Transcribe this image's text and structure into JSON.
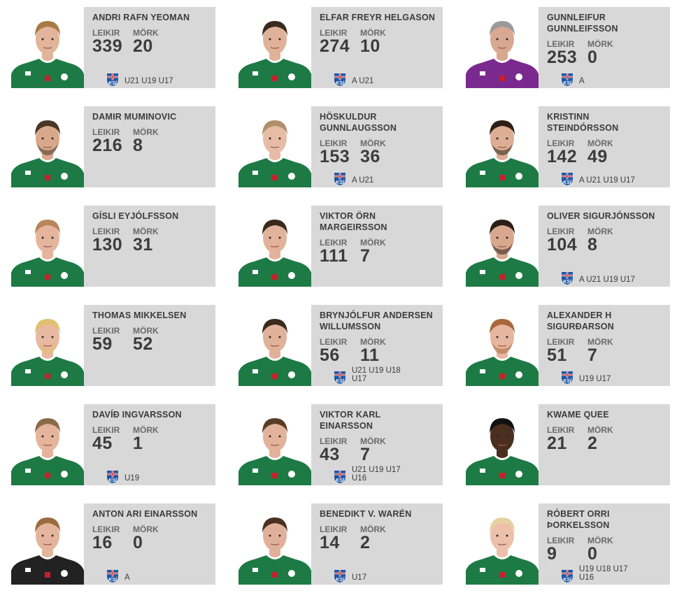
{
  "stat_labels": {
    "games": "LEIKIR",
    "goals": "MÖRK"
  },
  "colors": {
    "card_bg": "#d8d8d8",
    "jersey_green": "#1e7a45",
    "gk_purple": "#7a2a8e",
    "gk_black": "#222222",
    "ksi_blue": "#1b56a6",
    "ksi_red": "#d42b2b"
  },
  "players": [
    {
      "name": "ANDRI RAFN YEOMAN",
      "games": "339",
      "goals": "20",
      "teams": "U21 U19 U17",
      "ksi_logo": true,
      "kit": "green",
      "hair": "#a87a44",
      "skin": "#e2b49a",
      "beard": false
    },
    {
      "name": "ELFAR FREYR HELGASON",
      "games": "274",
      "goals": "10",
      "teams": "A U21",
      "ksi_logo": true,
      "kit": "green",
      "hair": "#3a2a1e",
      "skin": "#e0b29a",
      "beard": false
    },
    {
      "name": "GUNNLEIFUR GUNNLEIFSSON",
      "games": "253",
      "goals": "0",
      "teams": "A",
      "ksi_logo": true,
      "kit": "purple",
      "hair": "#9a9a9a",
      "skin": "#d9a890",
      "beard": false
    },
    {
      "name": "DAMIR MUMINOVIC",
      "games": "216",
      "goals": "8",
      "teams": "",
      "ksi_logo": false,
      "kit": "green",
      "hair": "#4a3626",
      "skin": "#d9a88c",
      "beard": true
    },
    {
      "name": "HÖSKULDUR GUNNLAUGSSON",
      "games": "153",
      "goals": "36",
      "teams": "A U21",
      "ksi_logo": true,
      "kit": "green",
      "hair": "#b08f6a",
      "skin": "#e6bca6",
      "beard": false
    },
    {
      "name": "KRISTINN STEINDÓRSSON",
      "games": "142",
      "goals": "49",
      "teams": "A U21 U19 U17",
      "ksi_logo": true,
      "kit": "green",
      "hair": "#2e2018",
      "skin": "#ddae94",
      "beard": true
    },
    {
      "name": "GÍSLI EYJÓLFSSON",
      "games": "130",
      "goals": "31",
      "teams": "",
      "ksi_logo": false,
      "kit": "green",
      "hair": "#b8865a",
      "skin": "#e4b49c",
      "beard": false
    },
    {
      "name": "VIKTOR ÖRN MARGEIRSSON",
      "games": "111",
      "goals": "7",
      "teams": "",
      "ksi_logo": false,
      "kit": "green",
      "hair": "#3a2a1c",
      "skin": "#e2b29a",
      "beard": false
    },
    {
      "name": "OLIVER SIGURJÓNSSON",
      "games": "104",
      "goals": "8",
      "teams": "A U21 U19 U17",
      "ksi_logo": true,
      "kit": "green",
      "hair": "#2a1e16",
      "skin": "#d8a88e",
      "beard": true
    },
    {
      "name": "THOMAS MIKKELSEN",
      "games": "59",
      "goals": "52",
      "teams": "",
      "ksi_logo": false,
      "kit": "green",
      "hair": "#e0c070",
      "skin": "#e8b8a0",
      "beard": true
    },
    {
      "name": "BRYNJÓLFUR ANDERSEN WILLUMSSON",
      "games": "56",
      "goals": "11",
      "teams": "U21 U19 U18 U17",
      "ksi_logo": true,
      "kit": "green",
      "hair": "#3a2a1e",
      "skin": "#e0b29a",
      "beard": false
    },
    {
      "name": "ALEXANDER H SIGURÐARSON",
      "games": "51",
      "goals": "7",
      "teams": "U19 U17",
      "ksi_logo": true,
      "kit": "green",
      "hair": "#a8683a",
      "skin": "#e6b6a0",
      "beard": true
    },
    {
      "name": "DAVÍÐ INGVARSSON",
      "games": "45",
      "goals": "1",
      "teams": "U19",
      "ksi_logo": true,
      "kit": "green",
      "hair": "#8a6a4a",
      "skin": "#e4b49c",
      "beard": false
    },
    {
      "name": "VIKTOR KARL EINARSSON",
      "games": "43",
      "goals": "7",
      "teams": "U21 U19 U17 U16",
      "ksi_logo": true,
      "kit": "green",
      "hair": "#5a3c26",
      "skin": "#e2b29a",
      "beard": false
    },
    {
      "name": "KWAME QUEE",
      "games": "21",
      "goals": "2",
      "teams": "",
      "ksi_logo": false,
      "kit": "green",
      "hair": "#111111",
      "skin": "#4a2e20",
      "beard": false
    },
    {
      "name": "ANTON ARI EINARSSON",
      "games": "16",
      "goals": "0",
      "teams": "A",
      "ksi_logo": true,
      "kit": "black",
      "hair": "#9a6a40",
      "skin": "#e4b49c",
      "beard": false
    },
    {
      "name": "BENEDIKT V. WARÉN",
      "games": "14",
      "goals": "2",
      "teams": "U17",
      "ksi_logo": true,
      "kit": "green",
      "hair": "#4a3020",
      "skin": "#e0b09a",
      "beard": false
    },
    {
      "name": "RÓBERT ORRI ÞORKELSSON",
      "games": "9",
      "goals": "0",
      "teams": "U19 U18 U17 U16",
      "ksi_logo": true,
      "kit": "green",
      "hair": "#e6d2a0",
      "skin": "#ecc0aa",
      "beard": false
    }
  ]
}
